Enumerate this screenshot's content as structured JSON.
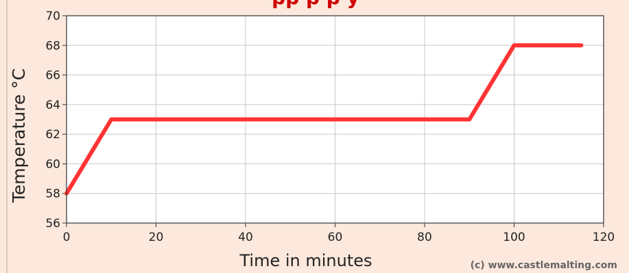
{
  "page": {
    "background_color": "#fce8dc",
    "plot_background": "#ffffff",
    "grid_color": "#c8c8c8",
    "partial_title": "pp p p y"
  },
  "chart_data": {
    "type": "line",
    "title": "",
    "xlabel": "Time in minutes",
    "ylabel": "Temperature °C",
    "xlim": [
      0,
      120
    ],
    "ylim": [
      56,
      70
    ],
    "x_ticks": [
      0,
      20,
      40,
      60,
      80,
      100,
      120
    ],
    "y_ticks": [
      56,
      58,
      60,
      62,
      64,
      66,
      68,
      70
    ],
    "grid": true,
    "series": [
      {
        "color": "#ff3333",
        "points": [
          [
            0,
            58
          ],
          [
            10,
            63
          ],
          [
            90,
            63
          ],
          [
            100,
            68
          ],
          [
            115,
            68
          ]
        ]
      }
    ],
    "annotations": [
      "(c) www.castlemalting.com"
    ]
  }
}
